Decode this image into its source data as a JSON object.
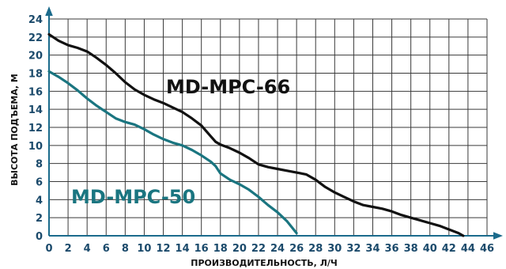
{
  "chart_data": {
    "type": "line",
    "title": "",
    "xlabel": "ПРОИЗВОДИТЕЛЬНОСТЬ, Л/Ч",
    "ylabel": "ВЫСОТА ПОДЪЕМА, М",
    "xlim": [
      0,
      46
    ],
    "ylim": [
      0,
      24
    ],
    "x_ticks": [
      0,
      2,
      4,
      6,
      8,
      10,
      12,
      14,
      16,
      18,
      20,
      22,
      24,
      26,
      28,
      30,
      32,
      34,
      36,
      38,
      40,
      42,
      44,
      46
    ],
    "y_ticks": [
      0,
      2,
      4,
      6,
      8,
      10,
      12,
      14,
      16,
      18,
      20,
      22,
      24
    ],
    "grid": true,
    "axis_color": "#1b6b8c",
    "grid_color": "#3a3a3a",
    "series": [
      {
        "name": "MD-MPC-66",
        "color": "#111111",
        "x": [
          0,
          1,
          2,
          3,
          4,
          5,
          6,
          7,
          8,
          9,
          10,
          11,
          12,
          13,
          14,
          15,
          16,
          17,
          17.5,
          18,
          19,
          20,
          21,
          22,
          23,
          24,
          25,
          26,
          27,
          28,
          29,
          30,
          31,
          32,
          33,
          34,
          35,
          36,
          37,
          38,
          39,
          40,
          41,
          42,
          43,
          43.5
        ],
        "y": [
          22.3,
          21.6,
          21.1,
          20.8,
          20.4,
          19.7,
          18.9,
          18.0,
          17.0,
          16.2,
          15.6,
          15.1,
          14.7,
          14.2,
          13.7,
          13.0,
          12.2,
          11.0,
          10.4,
          10.1,
          9.7,
          9.2,
          8.6,
          7.9,
          7.6,
          7.4,
          7.2,
          7.0,
          6.8,
          6.2,
          5.4,
          4.8,
          4.3,
          3.8,
          3.4,
          3.2,
          3.0,
          2.7,
          2.3,
          2.0,
          1.7,
          1.4,
          1.1,
          0.7,
          0.3,
          0.0
        ]
      },
      {
        "name": "MD-MPC-50",
        "color": "#1a7580",
        "x": [
          0,
          1,
          2,
          3,
          4,
          5,
          6,
          7,
          8,
          9,
          10,
          11,
          12,
          13,
          14,
          15,
          16,
          17,
          17.5,
          18,
          19,
          20,
          21,
          22,
          23,
          24,
          25,
          26
        ],
        "y": [
          18.2,
          17.6,
          16.9,
          16.1,
          15.2,
          14.4,
          13.7,
          13.0,
          12.6,
          12.3,
          11.8,
          11.2,
          10.7,
          10.3,
          10.0,
          9.5,
          8.9,
          8.2,
          7.7,
          6.9,
          6.2,
          5.7,
          5.1,
          4.3,
          3.4,
          2.6,
          1.6,
          0.3
        ]
      }
    ]
  }
}
